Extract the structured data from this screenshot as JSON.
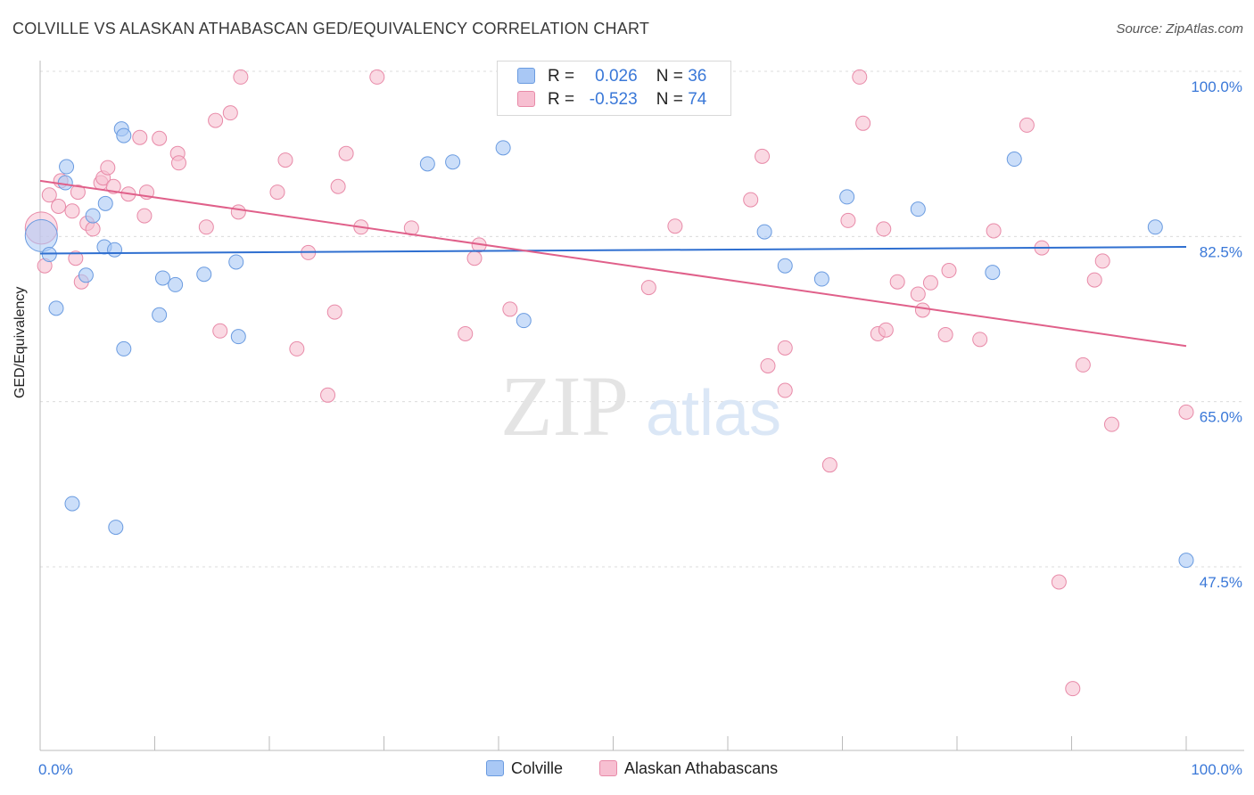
{
  "header": {
    "title": "COLVILLE VS ALASKAN ATHABASCAN GED/EQUIVALENCY CORRELATION CHART",
    "source": "Source: ZipAtlas.com"
  },
  "legend_box": {
    "rows": [
      {
        "r_label": "R =",
        "r_value": "0.026",
        "n_label": "N =",
        "n_value": "36",
        "color": "#a9c8f5",
        "border": "#6a9be0"
      },
      {
        "r_label": "R =",
        "r_value": "-0.523",
        "n_label": "N =",
        "n_value": "74",
        "color": "#f7bfd1",
        "border": "#e88aa8"
      }
    ]
  },
  "bottom_legend": [
    {
      "label": "Colville",
      "color": "#a9c8f5",
      "border": "#6a9be0"
    },
    {
      "label": "Alaskan Athabascans",
      "color": "#f7bfd1",
      "border": "#e88aa8"
    }
  ],
  "watermark": {
    "zip": "ZIP",
    "atlas": "atlas"
  },
  "chart_data": {
    "type": "scatter",
    "title": "COLVILLE VS ALASKAN ATHABASCAN GED/EQUIVALENCY CORRELATION CHART",
    "xlabel": "",
    "ylabel": "GED/Equivalency",
    "xlim": [
      0,
      100
    ],
    "ylim": [
      30,
      102
    ],
    "x_tick_labels": [
      "0.0%",
      "100.0%"
    ],
    "y_ticks": [
      47.5,
      65.0,
      82.5,
      100.0
    ],
    "y_tick_labels": [
      "47.5%",
      "65.0%",
      "82.5%",
      "100.0%"
    ],
    "grid": true,
    "legend_placement": "top-center",
    "series": [
      {
        "name": "Colville",
        "color": "#a9c8f5",
        "stroke": "#6a9be0",
        "line_color": "#2f6fd0",
        "trend": {
          "x": [
            0,
            100
          ],
          "y": [
            82.3,
            83.0
          ]
        },
        "points": [
          [
            0.1,
            84.2
          ],
          [
            0.8,
            82.2
          ],
          [
            1.4,
            76.5
          ],
          [
            2.2,
            89.8
          ],
          [
            2.3,
            91.5
          ],
          [
            2.8,
            55.8
          ],
          [
            4.6,
            86.3
          ],
          [
            5.6,
            83.0
          ],
          [
            4.0,
            80.0
          ],
          [
            5.7,
            87.6
          ],
          [
            6.5,
            82.7
          ],
          [
            6.6,
            53.3
          ],
          [
            7.1,
            95.5
          ],
          [
            7.3,
            72.2
          ],
          [
            7.3,
            94.8
          ],
          [
            10.4,
            75.8
          ],
          [
            10.7,
            79.7
          ],
          [
            11.8,
            79.0
          ],
          [
            14.3,
            80.1
          ],
          [
            17.1,
            81.4
          ],
          [
            17.3,
            73.5
          ],
          [
            33.8,
            91.8
          ],
          [
            36.0,
            92.0
          ],
          [
            40.4,
            93.5
          ],
          [
            42.2,
            75.2
          ],
          [
            44.9,
            101.0
          ],
          [
            48.2,
            98.9
          ],
          [
            63.2,
            84.6
          ],
          [
            65.0,
            81.0
          ],
          [
            68.2,
            79.6
          ],
          [
            70.4,
            88.3
          ],
          [
            76.6,
            87.0
          ],
          [
            83.1,
            80.3
          ],
          [
            85.0,
            92.3
          ],
          [
            97.3,
            85.1
          ],
          [
            100.0,
            49.8
          ]
        ]
      },
      {
        "name": "Alaskan Athabascans",
        "color": "#f7bfd1",
        "stroke": "#e88aa8",
        "line_color": "#e0608a",
        "trend": {
          "x": [
            0,
            100
          ],
          "y": [
            90.0,
            72.5
          ]
        },
        "points": [
          [
            0.1,
            85.0
          ],
          [
            0.4,
            81.0
          ],
          [
            0.8,
            88.5
          ],
          [
            1.6,
            87.3
          ],
          [
            1.8,
            90.0
          ],
          [
            2.8,
            86.8
          ],
          [
            3.1,
            81.8
          ],
          [
            3.3,
            88.8
          ],
          [
            3.6,
            79.3
          ],
          [
            4.1,
            85.5
          ],
          [
            4.6,
            84.9
          ],
          [
            5.3,
            89.8
          ],
          [
            5.5,
            90.3
          ],
          [
            5.9,
            91.4
          ],
          [
            6.4,
            89.4
          ],
          [
            7.7,
            88.6
          ],
          [
            8.7,
            94.6
          ],
          [
            9.1,
            86.3
          ],
          [
            9.3,
            88.8
          ],
          [
            10.4,
            94.5
          ],
          [
            12.0,
            92.9
          ],
          [
            12.1,
            91.9
          ],
          [
            14.5,
            85.1
          ],
          [
            15.3,
            96.4
          ],
          [
            15.7,
            74.1
          ],
          [
            16.6,
            97.2
          ],
          [
            17.3,
            86.7
          ],
          [
            17.5,
            101.0
          ],
          [
            20.7,
            88.8
          ],
          [
            21.4,
            92.2
          ],
          [
            22.4,
            72.2
          ],
          [
            23.4,
            82.4
          ],
          [
            25.1,
            67.3
          ],
          [
            25.7,
            76.1
          ],
          [
            26.0,
            89.4
          ],
          [
            26.7,
            92.9
          ],
          [
            28.0,
            85.1
          ],
          [
            29.4,
            101.0
          ],
          [
            32.4,
            85.0
          ],
          [
            37.1,
            73.8
          ],
          [
            37.9,
            81.8
          ],
          [
            38.3,
            83.2
          ],
          [
            41.0,
            76.4
          ],
          [
            53.1,
            78.7
          ],
          [
            55.4,
            85.2
          ],
          [
            62.0,
            88.0
          ],
          [
            63.0,
            92.6
          ],
          [
            63.5,
            70.4
          ],
          [
            65.0,
            72.3
          ],
          [
            65.0,
            67.8
          ],
          [
            68.9,
            59.9
          ],
          [
            70.5,
            85.8
          ],
          [
            71.5,
            101.0
          ],
          [
            71.8,
            96.1
          ],
          [
            73.1,
            73.8
          ],
          [
            73.6,
            84.9
          ],
          [
            73.8,
            74.2
          ],
          [
            74.8,
            79.3
          ],
          [
            76.6,
            78.0
          ],
          [
            77.0,
            76.3
          ],
          [
            77.7,
            79.2
          ],
          [
            79.0,
            73.7
          ],
          [
            79.3,
            80.5
          ],
          [
            82.0,
            73.2
          ],
          [
            83.2,
            84.7
          ],
          [
            86.1,
            95.9
          ],
          [
            87.4,
            82.9
          ],
          [
            88.9,
            47.5
          ],
          [
            90.1,
            36.2
          ],
          [
            91.0,
            70.5
          ],
          [
            92.0,
            79.5
          ],
          [
            92.7,
            81.5
          ],
          [
            93.5,
            64.2
          ],
          [
            100.0,
            65.5
          ]
        ]
      }
    ]
  }
}
